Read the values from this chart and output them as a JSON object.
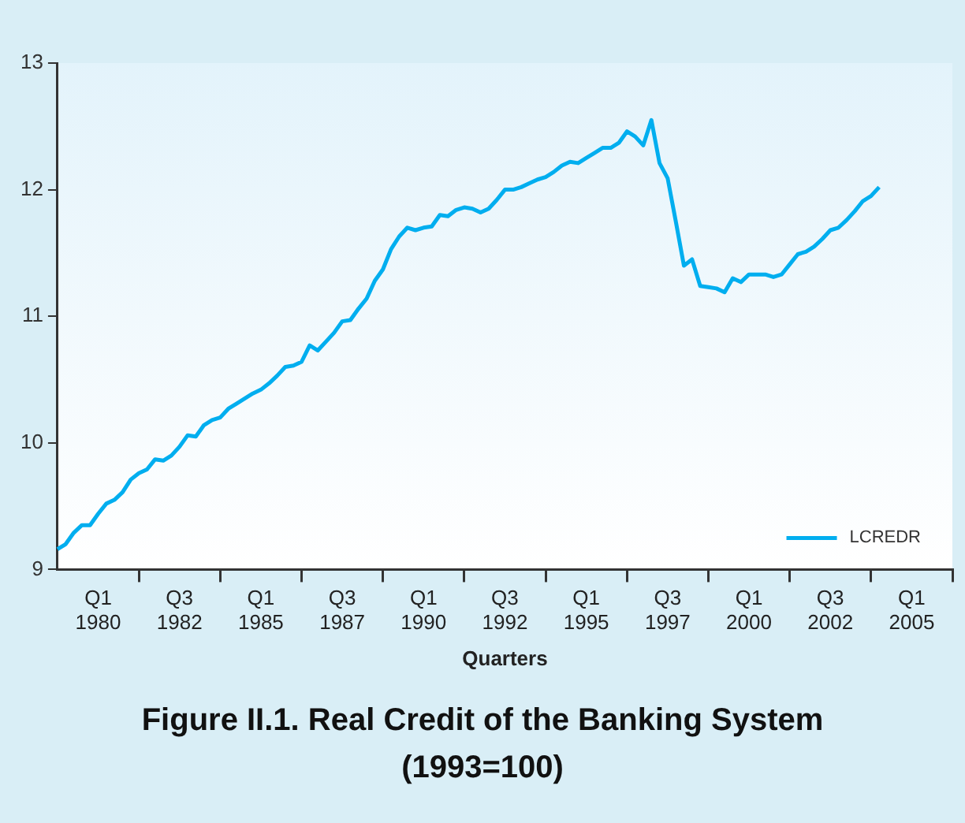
{
  "chart_data": {
    "type": "line",
    "title": "Figure II.1. Real Credit of the Banking System (1993=100)",
    "xlabel": "Quarters",
    "categories": [
      null,
      null,
      null,
      null,
      null,
      "Q1 1980",
      null,
      null,
      null,
      null,
      null,
      null,
      null,
      null,
      null,
      "Q3 1982",
      null,
      null,
      null,
      null,
      null,
      null,
      null,
      null,
      null,
      "Q1 1985",
      null,
      null,
      null,
      null,
      null,
      null,
      null,
      null,
      null,
      "Q3 1987",
      null,
      null,
      null,
      null,
      null,
      null,
      null,
      null,
      null,
      "Q1 1990",
      null,
      null,
      null,
      null,
      null,
      null,
      null,
      null,
      null,
      "Q3 1992",
      null,
      null,
      null,
      null,
      null,
      null,
      null,
      null,
      null,
      "Q1 1995",
      null,
      null,
      null,
      null,
      null,
      null,
      null,
      null,
      null,
      "Q3 1997",
      null,
      null,
      null,
      null,
      null,
      null,
      null,
      null,
      null,
      "Q1 2000",
      null,
      null,
      null,
      null,
      null,
      null,
      null,
      null,
      null,
      "Q3 2002",
      null,
      null,
      null,
      null,
      null,
      null,
      null,
      null,
      null,
      "Q1 2005",
      null,
      null,
      null,
      null,
      null
    ],
    "series": [
      {
        "name": "LCREDR",
        "color": "#00aeef",
        "values": [
          9.16,
          9.2,
          9.29,
          9.35,
          9.35,
          9.44,
          9.52,
          9.55,
          9.61,
          9.71,
          9.76,
          9.79,
          9.87,
          9.86,
          9.9,
          9.97,
          10.06,
          10.05,
          10.14,
          10.18,
          10.2,
          10.27,
          10.31,
          10.35,
          10.39,
          10.42,
          10.47,
          10.53,
          10.6,
          10.61,
          10.64,
          10.77,
          10.73,
          10.8,
          10.87,
          10.96,
          10.97,
          11.06,
          11.14,
          11.28,
          11.37,
          11.53,
          11.63,
          11.7,
          11.68,
          11.7,
          11.71,
          11.8,
          11.79,
          11.84,
          11.86,
          11.85,
          11.82,
          11.85,
          11.92,
          12.0,
          12.0,
          12.02,
          12.05,
          12.08,
          12.1,
          12.14,
          12.19,
          12.22,
          12.21,
          12.25,
          12.29,
          12.33,
          12.33,
          12.37,
          12.46,
          12.42,
          12.35,
          12.55,
          12.21,
          12.09,
          11.75,
          11.4,
          11.45,
          11.24,
          11.23,
          11.22,
          11.19,
          11.3,
          11.27,
          11.33,
          11.33,
          11.33,
          11.31,
          11.33,
          11.41,
          11.49,
          11.51,
          11.55,
          11.61,
          11.68,
          11.7,
          11.76,
          11.83,
          11.91,
          11.95,
          12.02,
          null,
          null,
          null,
          null,
          null,
          null,
          null,
          null,
          null
        ]
      }
    ],
    "ylim": [
      9,
      13
    ],
    "yticks": [
      9,
      10,
      11,
      12,
      13
    ],
    "grid": false,
    "legend": "bottom right",
    "marker": "none",
    "line_style": "solid"
  }
}
